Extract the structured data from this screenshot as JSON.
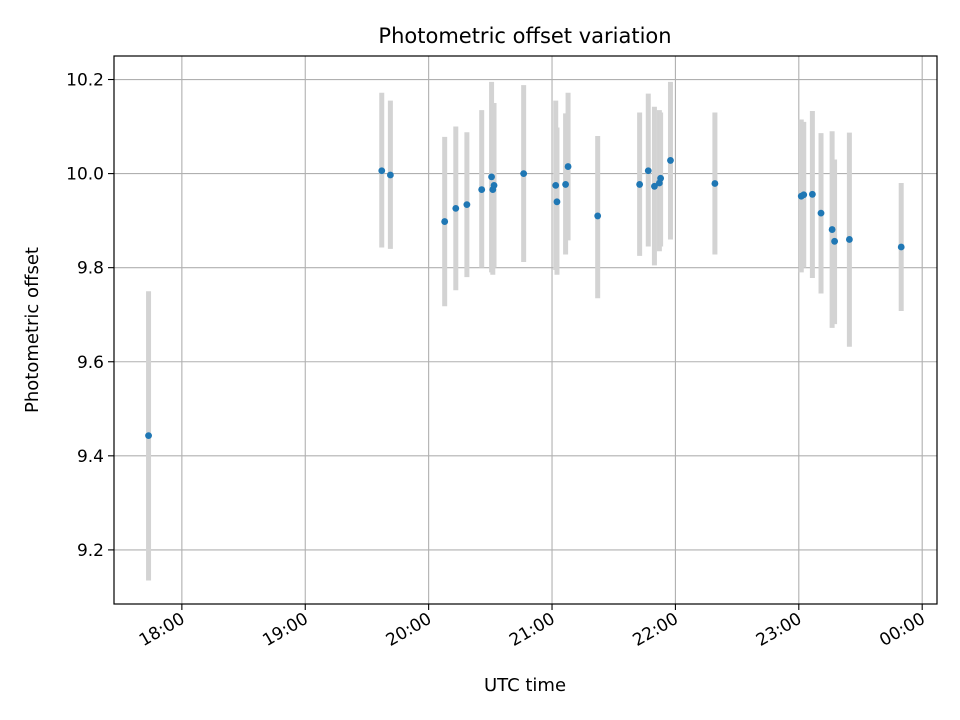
{
  "chart_data": {
    "type": "scatter",
    "title": "Photometric offset variation",
    "xlabel": "UTC time",
    "ylabel": "Photometric offset",
    "x_unit": "hours",
    "xlim": [
      17.45,
      24.12
    ],
    "ylim": [
      9.085,
      10.25
    ],
    "grid": true,
    "marker_color": "#1f77b4",
    "errorbar_color": "#d3d3d3",
    "x_ticks": [
      {
        "value": 18,
        "label": "18:00"
      },
      {
        "value": 19,
        "label": "19:00"
      },
      {
        "value": 20,
        "label": "20:00"
      },
      {
        "value": 21,
        "label": "21:00"
      },
      {
        "value": 22,
        "label": "22:00"
      },
      {
        "value": 23,
        "label": "23:00"
      },
      {
        "value": 24,
        "label": "00:00"
      }
    ],
    "y_ticks": [
      {
        "value": 9.2,
        "label": "9.2"
      },
      {
        "value": 9.4,
        "label": "9.4"
      },
      {
        "value": 9.6,
        "label": "9.6"
      },
      {
        "value": 9.8,
        "label": "9.8"
      },
      {
        "value": 10.0,
        "label": "10.0"
      },
      {
        "value": 10.2,
        "label": "10.2"
      }
    ],
    "points": [
      {
        "x": 17.73,
        "y": 9.443,
        "ylow": 9.135,
        "yhigh": 9.75
      },
      {
        "x": 19.62,
        "y": 10.006,
        "ylow": 9.843,
        "yhigh": 10.172
      },
      {
        "x": 19.69,
        "y": 9.997,
        "ylow": 9.84,
        "yhigh": 10.155
      },
      {
        "x": 20.13,
        "y": 9.898,
        "ylow": 9.718,
        "yhigh": 10.078
      },
      {
        "x": 20.22,
        "y": 9.926,
        "ylow": 9.752,
        "yhigh": 10.1
      },
      {
        "x": 20.31,
        "y": 9.934,
        "ylow": 9.78,
        "yhigh": 10.088
      },
      {
        "x": 20.43,
        "y": 9.966,
        "ylow": 9.8,
        "yhigh": 10.135
      },
      {
        "x": 20.51,
        "y": 9.993,
        "ylow": 9.79,
        "yhigh": 10.195
      },
      {
        "x": 20.52,
        "y": 9.966,
        "ylow": 9.785,
        "yhigh": 10.148
      },
      {
        "x": 20.53,
        "y": 9.975,
        "ylow": 9.8,
        "yhigh": 10.15
      },
      {
        "x": 20.77,
        "y": 10.0,
        "ylow": 9.812,
        "yhigh": 10.188
      },
      {
        "x": 21.03,
        "y": 9.975,
        "ylow": 9.795,
        "yhigh": 10.155
      },
      {
        "x": 21.04,
        "y": 9.94,
        "ylow": 9.785,
        "yhigh": 10.098
      },
      {
        "x": 21.11,
        "y": 9.977,
        "ylow": 9.828,
        "yhigh": 10.128
      },
      {
        "x": 21.13,
        "y": 10.015,
        "ylow": 9.858,
        "yhigh": 10.172
      },
      {
        "x": 21.37,
        "y": 9.91,
        "ylow": 9.735,
        "yhigh": 10.08
      },
      {
        "x": 21.71,
        "y": 9.977,
        "ylow": 9.825,
        "yhigh": 10.13
      },
      {
        "x": 21.78,
        "y": 10.006,
        "ylow": 9.845,
        "yhigh": 10.17
      },
      {
        "x": 21.83,
        "y": 9.973,
        "ylow": 9.805,
        "yhigh": 10.142
      },
      {
        "x": 21.87,
        "y": 9.98,
        "ylow": 9.835,
        "yhigh": 10.135
      },
      {
        "x": 21.88,
        "y": 9.99,
        "ylow": 9.845,
        "yhigh": 10.13
      },
      {
        "x": 21.96,
        "y": 10.028,
        "ylow": 9.86,
        "yhigh": 10.195
      },
      {
        "x": 22.32,
        "y": 9.979,
        "ylow": 9.828,
        "yhigh": 10.13
      },
      {
        "x": 23.02,
        "y": 9.952,
        "ylow": 9.79,
        "yhigh": 10.115
      },
      {
        "x": 23.04,
        "y": 9.955,
        "ylow": 9.8,
        "yhigh": 10.11
      },
      {
        "x": 23.11,
        "y": 9.956,
        "ylow": 9.778,
        "yhigh": 10.133
      },
      {
        "x": 23.18,
        "y": 9.916,
        "ylow": 9.745,
        "yhigh": 10.086
      },
      {
        "x": 23.27,
        "y": 9.881,
        "ylow": 9.672,
        "yhigh": 10.09
      },
      {
        "x": 23.29,
        "y": 9.856,
        "ylow": 9.68,
        "yhigh": 10.03
      },
      {
        "x": 23.41,
        "y": 9.86,
        "ylow": 9.632,
        "yhigh": 10.087
      },
      {
        "x": 23.83,
        "y": 9.844,
        "ylow": 9.708,
        "yhigh": 9.98
      }
    ]
  }
}
